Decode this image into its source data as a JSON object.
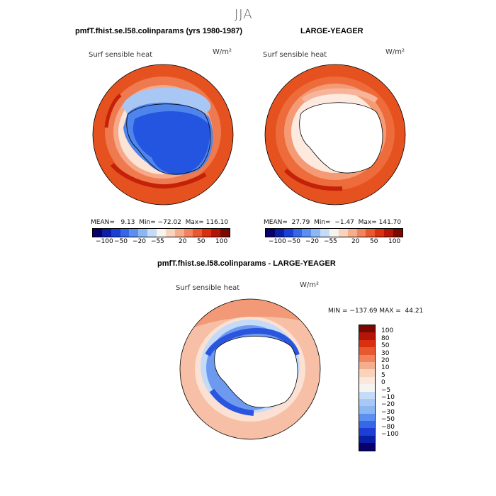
{
  "page": {
    "main_title": "JJA",
    "left_title": "pmfT.fhist.se.l58.colinparams (yrs 1980-1987)",
    "right_title": "LARGE-YEAGER",
    "bottom_title": "pmfT.fhist.se.l58.colinparams - LARGE-YEAGER"
  },
  "panels": {
    "left": {
      "variable": "Surf sensible heat",
      "units": "W/m²",
      "stats": "MEAN=   9.13  Min= −72.02  Max= 116.10"
    },
    "right": {
      "variable": "Surf sensible heat",
      "units": "W/m²",
      "stats": "MEAN=  27.79  Min=  −1.47  Max= 141.70"
    },
    "diff": {
      "variable": "Surf sensible heat",
      "units": "W/m²",
      "stats": "MIN = −137.69 MAX =  44.21"
    }
  },
  "colorbar_h": {
    "colors": [
      "#08006b",
      "#0a1ea8",
      "#1b3fd6",
      "#3567e8",
      "#5b8ff0",
      "#8db6f5",
      "#c4dcf8",
      "#f7f3ee",
      "#f9d3bc",
      "#f6ad8d",
      "#f1835f",
      "#e9582f",
      "#d9310f",
      "#b31506",
      "#7a0700"
    ],
    "ticks": [
      "−100",
      "−50",
      "−20",
      "−5",
      "5",
      "20",
      "50",
      "100"
    ]
  },
  "colorbar_v": {
    "colors": [
      "#7a0700",
      "#b31506",
      "#d9310f",
      "#e9582f",
      "#f1835f",
      "#f6ad8d",
      "#f9d3bc",
      "#fae8dc",
      "#f7f3ee",
      "#c4dcf8",
      "#a8c8f6",
      "#8db6f5",
      "#5b8ff0",
      "#3567e8",
      "#1b3fd6",
      "#0a1ea8",
      "#08006b"
    ],
    "ticks": [
      "100",
      "80",
      "50",
      "30",
      "20",
      "10",
      "5",
      "0",
      "−5",
      "−10",
      "−20",
      "−30",
      "−50",
      "−80",
      "−100"
    ]
  }
}
